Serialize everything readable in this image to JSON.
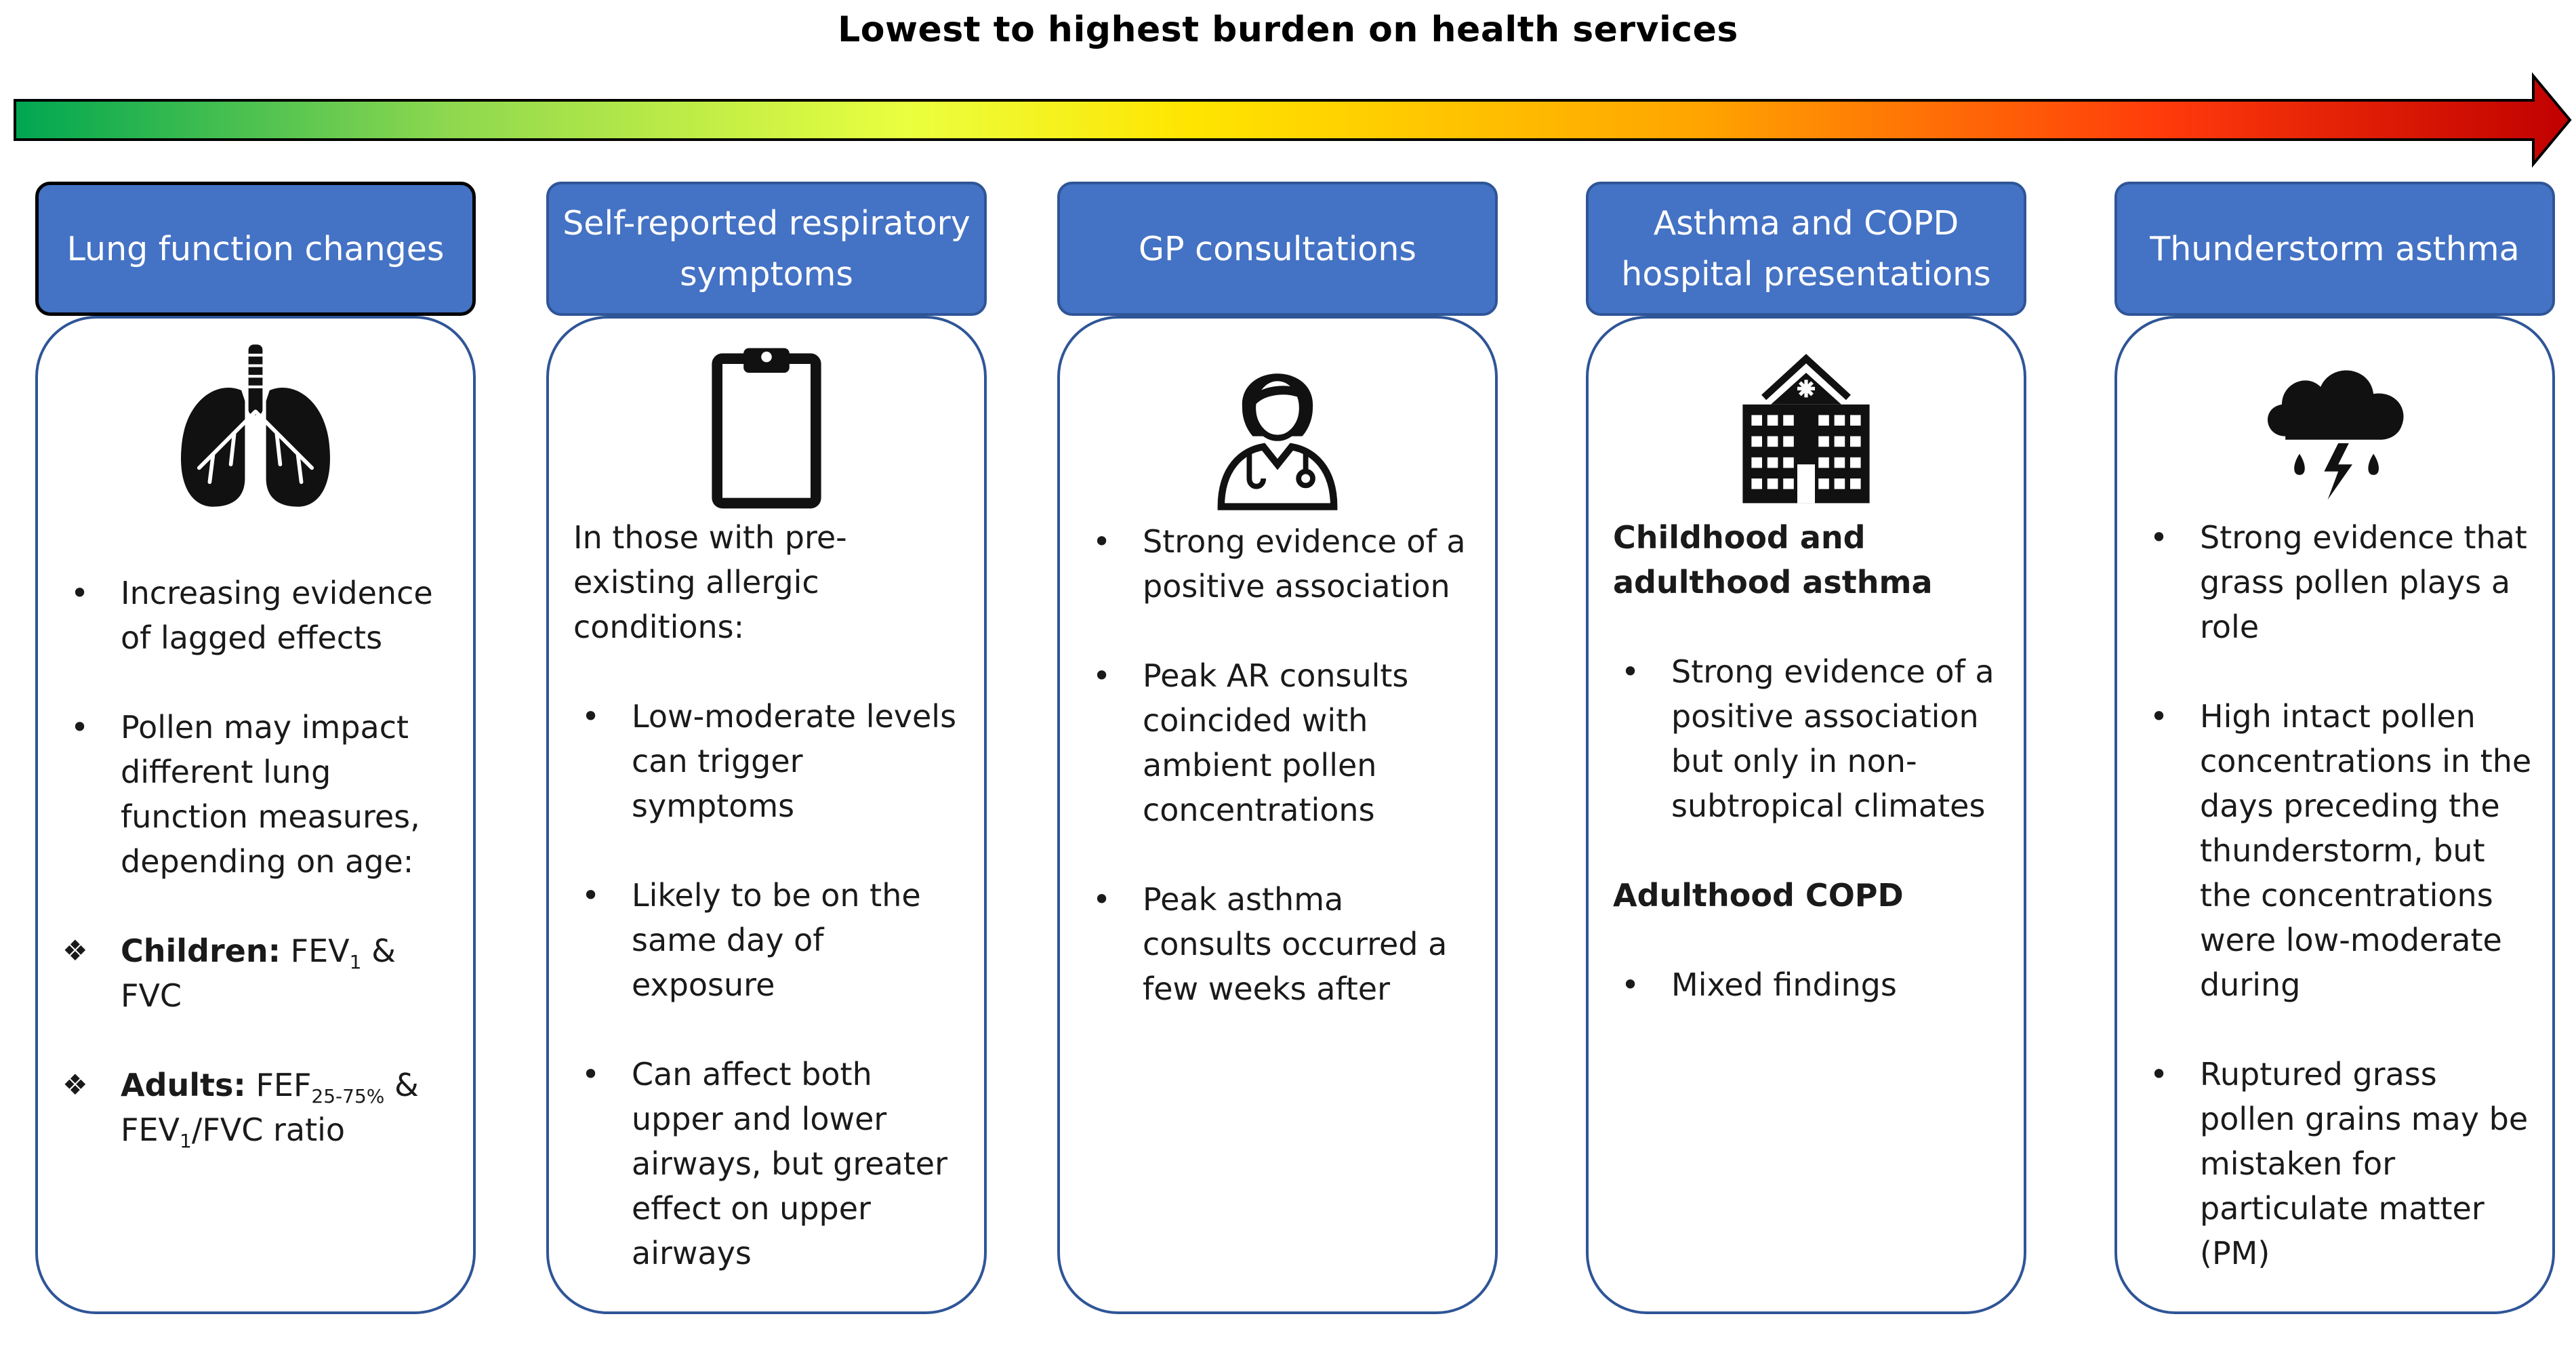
{
  "title": "Lowest to highest burden on health services",
  "colors": {
    "header_bg": "#4472c4",
    "border": "#2f5597",
    "gradient": [
      "#00a651",
      "#8ed84f",
      "#eaff3f",
      "#ffe500",
      "#ffa400",
      "#ff3b0b",
      "#c00000"
    ]
  },
  "columns": [
    {
      "header": "Lung function changes",
      "icon": "lungs-icon",
      "bullets": [
        "Increasing evidence of lagged effects",
        "Pollen may impact different lung function measures, depending on age:"
      ],
      "children_label": "Children:",
      "children_text_a": "FEV",
      "children_sub": "1",
      "children_text_b": "& FVC",
      "adults_label": "Adults:",
      "adults_text_a": "FEF",
      "adults_sub": "25-75%",
      "adults_text_b": "&",
      "adults_text_c": "FEV",
      "adults_sub2": "1",
      "adults_text_d": "/FVC ratio"
    },
    {
      "header": "Self-reported respiratory symptoms",
      "icon": "clipboard-icon",
      "intro": "In those with pre-existing allergic conditions:",
      "bullets": [
        "Low-moderate levels can trigger symptoms",
        "Likely to be on the same day of exposure",
        "Can affect both upper and lower airways, but greater effect on upper airways"
      ]
    },
    {
      "header": "GP consultations",
      "icon": "doctor-icon",
      "bullets": [
        "Strong evidence of a positive association",
        "Peak AR consults coincided with ambient pollen concentrations",
        "Peak asthma consults occurred a few weeks after"
      ]
    },
    {
      "header": "Asthma and COPD hospital presentations",
      "icon": "hospital-icon",
      "heading1": "Childhood and adulthood asthma",
      "bullets1": [
        "Strong evidence of a positive association but only in non-subtropical climates"
      ],
      "heading2": "Adulthood COPD",
      "bullets2": [
        "Mixed findings"
      ]
    },
    {
      "header": "Thunderstorm asthma",
      "icon": "storm-cloud-icon",
      "bullets": [
        "Strong evidence that grass pollen plays a role",
        "High intact pollen concentrations in the days preceding the thunderstorm, but the concentrations were low-moderate during",
        "Ruptured grass pollen grains may be mistaken for particulate matter (PM)"
      ]
    }
  ]
}
